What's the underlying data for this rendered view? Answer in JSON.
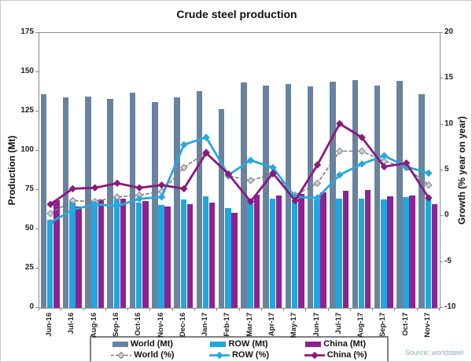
{
  "title": "Crude steel production",
  "source": "Source: worldsteel",
  "colors": {
    "world_bar": "#68839F",
    "row_bar": "#1FA7DE",
    "china_bar": "#8E2193",
    "world_line": "#7F7F7F",
    "world_marker_fill": "#CBD2DA",
    "row_line": "#29A8DC",
    "china_line": "#8B1A7D",
    "axis": "#8A8A8A",
    "source_text": "#93A9BE"
  },
  "chart_data": {
    "type": "bar+line combo",
    "title": "Crude steel production",
    "categories": [
      "Jun-16",
      "Jul-16",
      "Aug-16",
      "Sep-16",
      "Oct-16",
      "Nov-16",
      "Dec-16",
      "Jan-17",
      "Feb-17",
      "Mar-17",
      "Apr-17",
      "May-17",
      "Jun-17",
      "Jul-17",
      "Aug-17",
      "Sep-17",
      "Oct-17",
      "Nov-17"
    ],
    "left_axis": {
      "label": "Production (Mt)",
      "min": 0,
      "max": 175,
      "ticks": [
        0,
        25,
        50,
        75,
        100,
        125,
        150,
        175
      ]
    },
    "right_axis": {
      "label": "Growth (% year on year)",
      "min": -10,
      "max": 20,
      "ticks": [
        -10,
        -5,
        0,
        5,
        10,
        15,
        20
      ]
    },
    "grid": false,
    "legend_position": "bottom",
    "bar_series": [
      {
        "name": "World (Mt)",
        "color_key": "world_bar",
        "values": [
          136,
          134,
          134.5,
          133,
          137,
          131,
          134,
          138,
          126.5,
          143.5,
          141.5,
          142.5,
          141,
          144,
          145,
          141.5,
          144.5,
          136
        ]
      },
      {
        "name": "ROW (Mt)",
        "color_key": "row_bar",
        "values": [
          56,
          67,
          68,
          69.5,
          67,
          65.5,
          69,
          71,
          63.5,
          69,
          69.5,
          68.5,
          69,
          69.5,
          69.5,
          69,
          70.5,
          70
        ]
      },
      {
        "name": "China (Mt)",
        "color_key": "china_bar",
        "values": [
          68.5,
          64.5,
          69,
          69.5,
          68,
          64.5,
          66,
          67,
          60.5,
          72,
          71.5,
          72.5,
          73.5,
          74.5,
          75,
          71,
          71.5,
          66
        ]
      }
    ],
    "line_series": [
      {
        "name": "World (%)",
        "color_key": "world_line",
        "marker_fill_key": "world_marker_fill",
        "width": 1.6,
        "values": [
          0.3,
          1.7,
          1.6,
          2.1,
          2.3,
          2.7,
          5.3,
          7.0,
          4.4,
          3.9,
          4.6,
          2.3,
          3.6,
          7.1,
          7.1,
          6.0,
          5.3,
          3.4
        ]
      },
      {
        "name": "ROW (%)",
        "color_key": "row_line",
        "width": 2.8,
        "values": [
          -0.7,
          0.7,
          1.3,
          1.1,
          1.9,
          2.1,
          7.8,
          8.6,
          4.5,
          6.1,
          5.3,
          2.1,
          2.0,
          4.5,
          5.7,
          6.6,
          5.4,
          4.7
        ]
      },
      {
        "name": "China (%)",
        "color_key": "china_line",
        "width": 2.8,
        "values": [
          1.3,
          3.0,
          3.1,
          3.6,
          3.1,
          3.4,
          3.0,
          6.9,
          4.6,
          1.6,
          4.7,
          1.7,
          5.6,
          10.1,
          8.6,
          5.4,
          5.8,
          2.0
        ]
      }
    ]
  }
}
